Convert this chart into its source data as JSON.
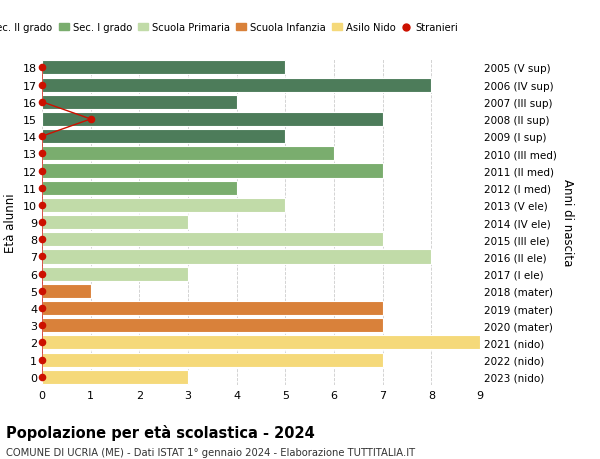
{
  "ages": [
    18,
    17,
    16,
    15,
    14,
    13,
    12,
    11,
    10,
    9,
    8,
    7,
    6,
    5,
    4,
    3,
    2,
    1,
    0
  ],
  "right_labels": [
    "2005 (V sup)",
    "2006 (IV sup)",
    "2007 (III sup)",
    "2008 (II sup)",
    "2009 (I sup)",
    "2010 (III med)",
    "2011 (II med)",
    "2012 (I med)",
    "2013 (V ele)",
    "2014 (IV ele)",
    "2015 (III ele)",
    "2016 (II ele)",
    "2017 (I ele)",
    "2018 (mater)",
    "2019 (mater)",
    "2020 (mater)",
    "2021 (nido)",
    "2022 (nido)",
    "2023 (nido)"
  ],
  "values": [
    5,
    8,
    4,
    7,
    5,
    6,
    7,
    4,
    5,
    3,
    7,
    8,
    3,
    1,
    7,
    7,
    9,
    7,
    3
  ],
  "colors": [
    "#4d7c5a",
    "#4d7c5a",
    "#4d7c5a",
    "#4d7c5a",
    "#4d7c5a",
    "#7aad6e",
    "#7aad6e",
    "#7aad6e",
    "#c1dba8",
    "#c1dba8",
    "#c1dba8",
    "#c1dba8",
    "#c1dba8",
    "#d9813a",
    "#d9813a",
    "#d9813a",
    "#f5d97a",
    "#f5d97a",
    "#f5d97a"
  ],
  "stranieri_x": [
    0,
    0,
    0,
    1,
    0,
    0,
    0,
    0,
    0,
    0,
    0,
    0,
    0,
    0,
    0,
    0,
    0,
    0,
    0
  ],
  "legend_labels": [
    "Sec. II grado",
    "Sec. I grado",
    "Scuola Primaria",
    "Scuola Infanzia",
    "Asilo Nido",
    "Stranieri"
  ],
  "legend_colors": [
    "#4d7c5a",
    "#7aad6e",
    "#c1dba8",
    "#d9813a",
    "#f5d97a",
    "#cc1100"
  ],
  "title": "Popolazione per età scolastica - 2024",
  "subtitle": "COMUNE DI UCRIA (ME) - Dati ISTAT 1° gennaio 2024 - Elaborazione TUTTITALIA.IT",
  "ylabel": "Età alunni",
  "right_ylabel": "Anni di nascita",
  "xlim": [
    0,
    9
  ],
  "bg_color": "#ffffff",
  "grid_color": "#cccccc",
  "bar_height": 0.82,
  "stranieri_line_color": "#cc1100",
  "stranieri_dot_color": "#cc1100"
}
